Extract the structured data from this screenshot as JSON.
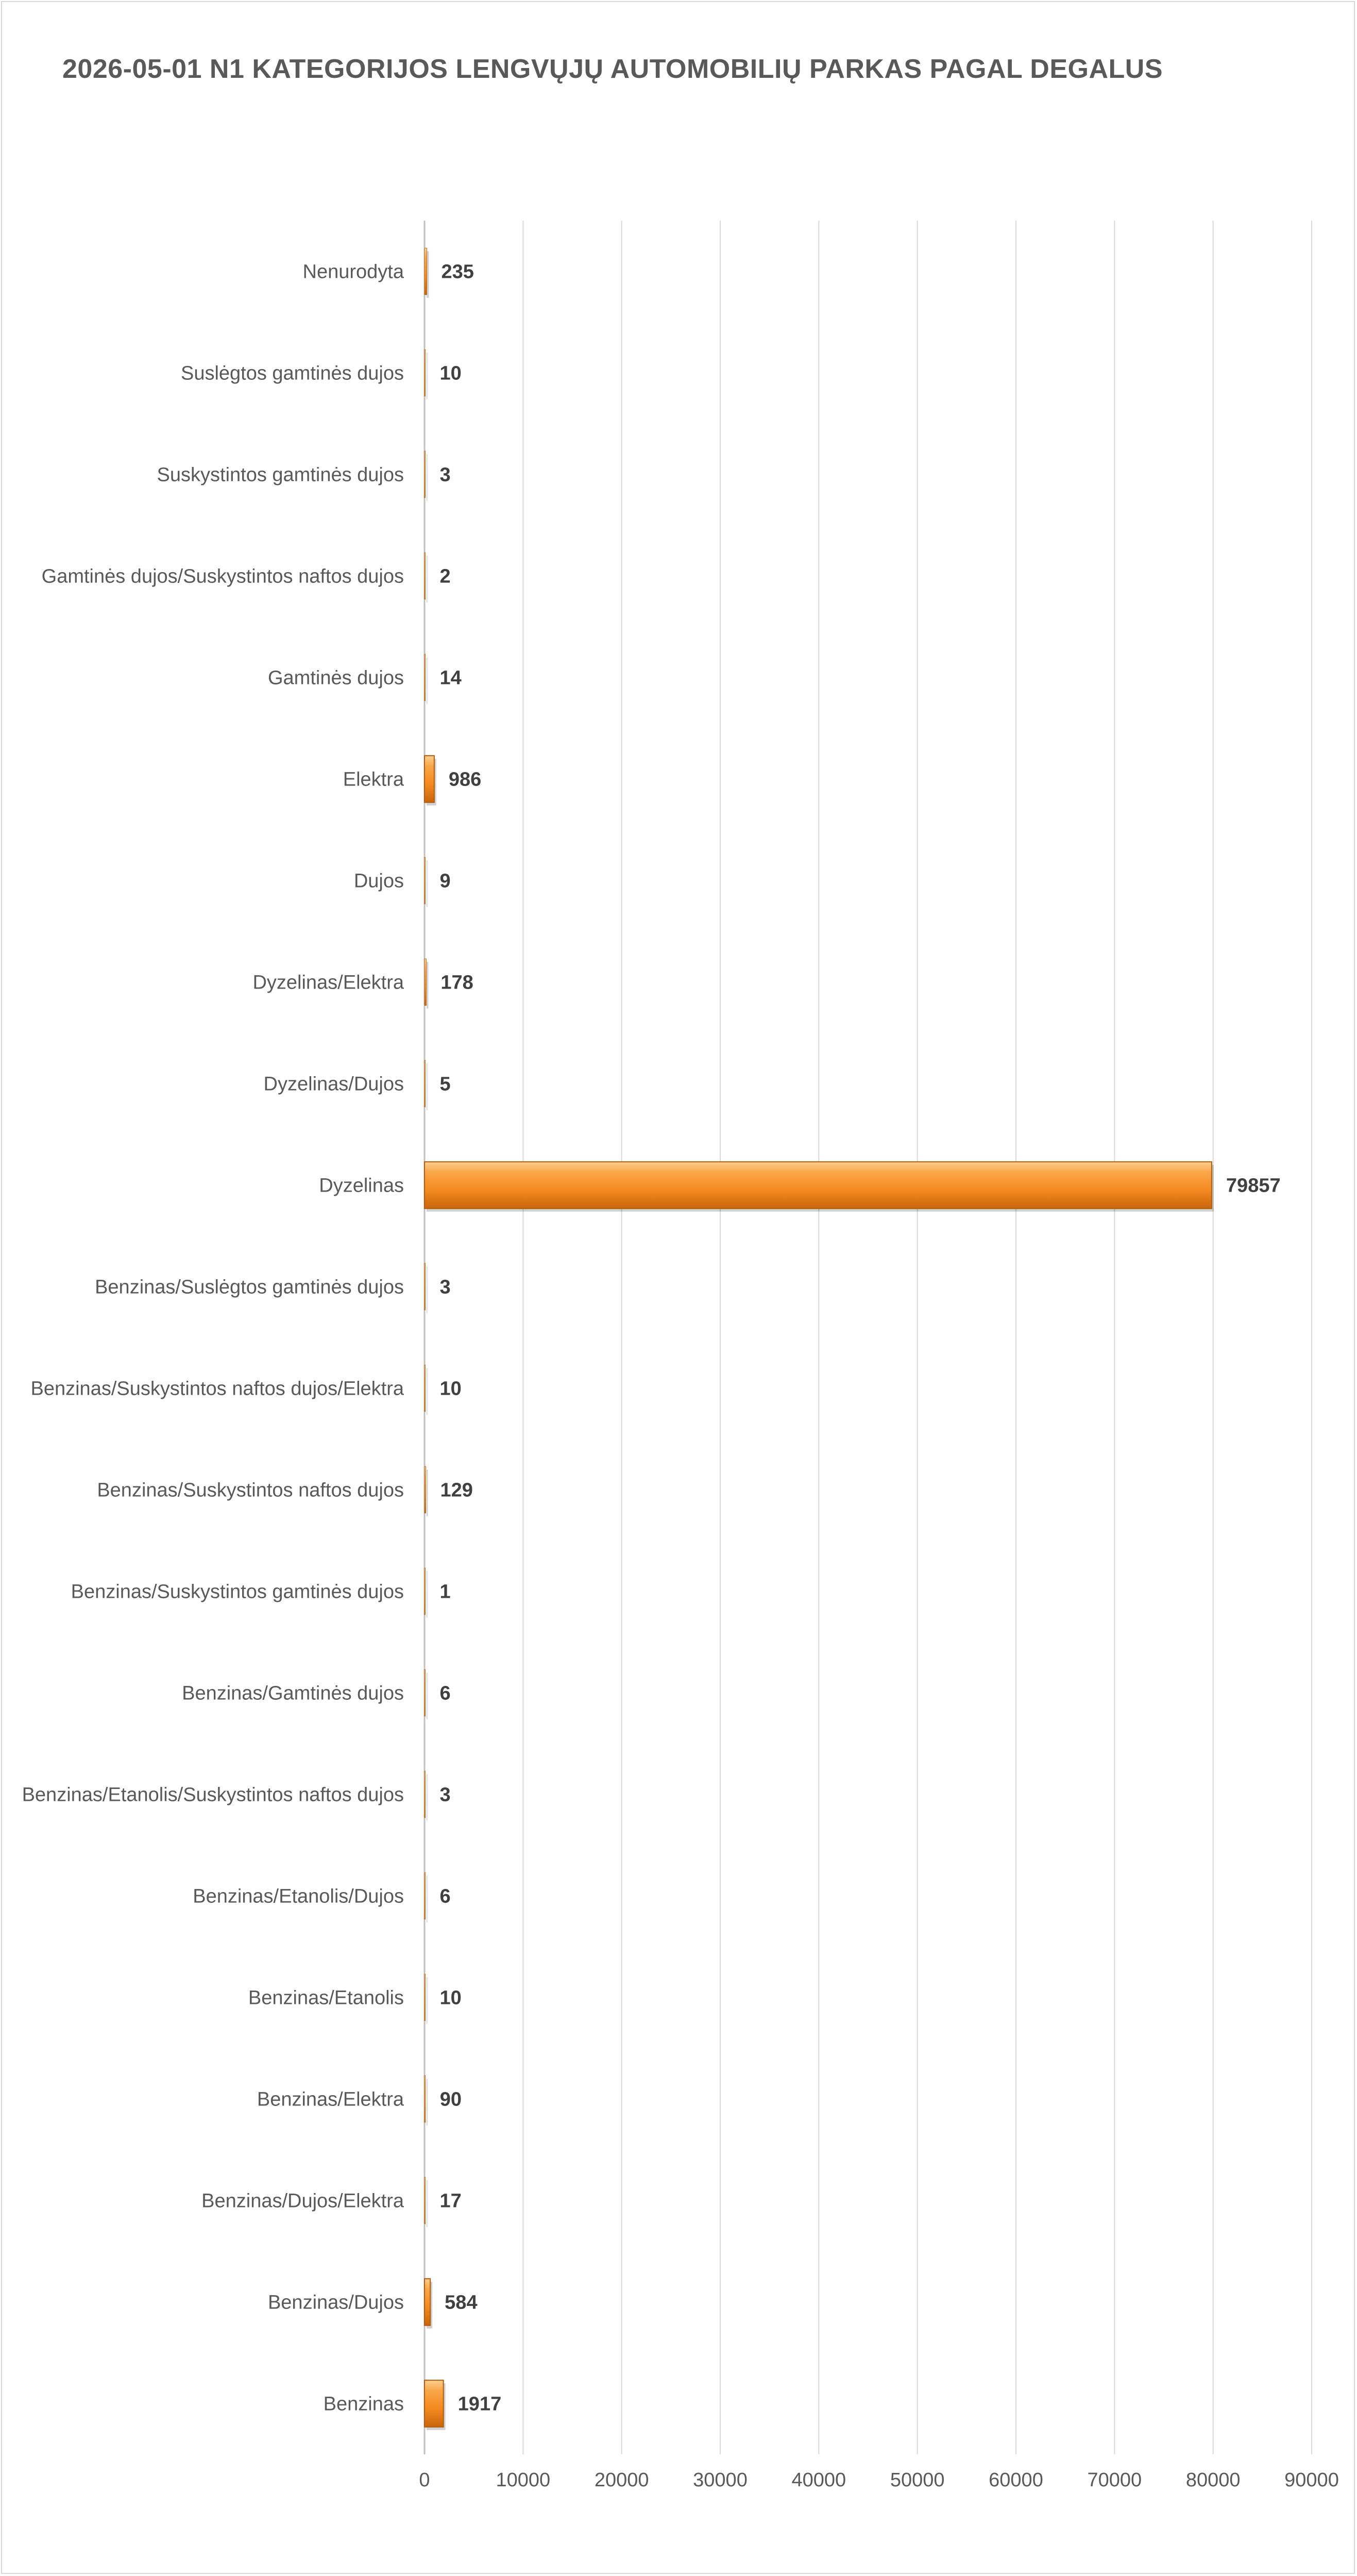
{
  "chart_data": {
    "type": "bar",
    "orientation": "horizontal",
    "title": "2026-05-01 N1 KATEGORIJOS LENGVŲJŲ AUTOMOBILIŲ PARKAS PAGAL DEGALUS",
    "xlabel": "",
    "ylabel": "",
    "xlim": [
      0,
      90000
    ],
    "x_ticks": [
      "0",
      "10000",
      "20000",
      "30000",
      "40000",
      "50000",
      "60000",
      "70000",
      "80000",
      "90000"
    ],
    "grid": true,
    "legend": "none",
    "bar_color": "#f58a1f",
    "categories": [
      "Nenurodyta",
      "Suslėgtos gamtinės dujos",
      "Suskystintos gamtinės dujos",
      "Gamtinės dujos/Suskystintos naftos dujos",
      "Gamtinės dujos",
      "Elektra",
      "Dujos",
      "Dyzelinas/Elektra",
      "Dyzelinas/Dujos",
      "Dyzelinas",
      "Benzinas/Suslėgtos gamtinės dujos",
      "Benzinas/Suskystintos naftos dujos/Elektra",
      "Benzinas/Suskystintos naftos dujos",
      "Benzinas/Suskystintos gamtinės dujos",
      "Benzinas/Gamtinės dujos",
      "Benzinas/Etanolis/Suskystintos naftos dujos",
      "Benzinas/Etanolis/Dujos",
      "Benzinas/Etanolis",
      "Benzinas/Elektra",
      "Benzinas/Dujos/Elektra",
      "Benzinas/Dujos",
      "Benzinas"
    ],
    "values": [
      235,
      10,
      3,
      2,
      14,
      986,
      9,
      178,
      5,
      79857,
      3,
      10,
      129,
      1,
      6,
      3,
      6,
      10,
      90,
      17,
      584,
      1917
    ],
    "value_labels": [
      "235",
      "10",
      "3",
      "2",
      "14",
      "986",
      "9",
      "178",
      "5",
      "79857",
      "3",
      "10",
      "129",
      "1",
      "6",
      "3",
      "6",
      "10",
      "90",
      "17",
      "584",
      "1917"
    ]
  }
}
